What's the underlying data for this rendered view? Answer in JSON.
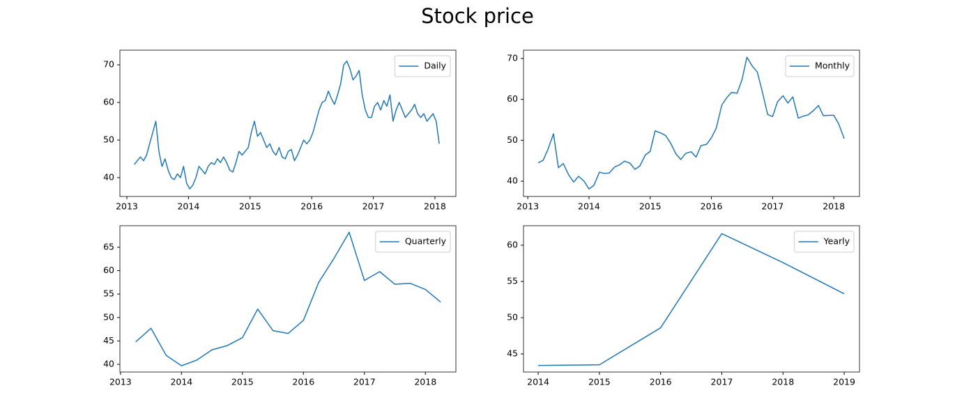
{
  "title": "Stock price",
  "chart_data": [
    {
      "type": "line",
      "legend": "upper right",
      "x": [
        2013.12,
        2013.17,
        2013.22,
        2013.27,
        2013.32,
        2013.37,
        2013.42,
        2013.47,
        2013.52,
        2013.57,
        2013.62,
        2013.67,
        2013.72,
        2013.77,
        2013.82,
        2013.87,
        2013.92,
        2013.97,
        2014.02,
        2014.07,
        2014.12,
        2014.17,
        2014.22,
        2014.27,
        2014.32,
        2014.37,
        2014.42,
        2014.47,
        2014.52,
        2014.57,
        2014.62,
        2014.67,
        2014.72,
        2014.77,
        2014.82,
        2014.87,
        2014.92,
        2014.97,
        2015.02,
        2015.07,
        2015.12,
        2015.17,
        2015.22,
        2015.27,
        2015.32,
        2015.37,
        2015.42,
        2015.47,
        2015.52,
        2015.57,
        2015.62,
        2015.67,
        2015.72,
        2015.77,
        2015.82,
        2015.87,
        2015.92,
        2015.97,
        2016.02,
        2016.07,
        2016.12,
        2016.17,
        2016.22,
        2016.27,
        2016.32,
        2016.37,
        2016.42,
        2016.47,
        2016.52,
        2016.57,
        2016.62,
        2016.67,
        2016.72,
        2016.77,
        2016.82,
        2016.87,
        2016.92,
        2016.97,
        2017.02,
        2017.07,
        2017.12,
        2017.17,
        2017.22,
        2017.27,
        2017.32,
        2017.37,
        2017.42,
        2017.47,
        2017.52,
        2017.57,
        2017.62,
        2017.67,
        2017.72,
        2017.77,
        2017.82,
        2017.87,
        2017.92,
        2017.97,
        2018.02,
        2018.07
      ],
      "series": [
        {
          "name": "Daily",
          "color": "#1f77b4",
          "values": [
            43.5,
            44.5,
            45.5,
            44.5,
            46,
            49,
            52,
            55,
            47,
            43,
            45,
            42,
            40,
            39.5,
            41,
            40,
            43,
            38.5,
            37,
            38,
            40,
            43,
            42,
            41,
            43,
            44,
            43.5,
            45,
            44,
            45.5,
            44,
            42,
            41.5,
            44,
            47,
            46,
            47,
            48,
            52,
            55,
            51,
            52,
            50,
            48,
            49,
            47,
            46,
            48,
            45.5,
            45,
            47,
            47.5,
            44.5,
            46,
            48,
            50,
            49,
            50,
            52,
            55,
            58,
            60,
            60.5,
            63,
            61,
            59.5,
            62,
            65,
            70,
            71,
            69,
            66,
            67,
            68.5,
            62,
            58,
            56,
            56,
            59,
            60,
            58,
            60.5,
            59,
            62,
            55,
            58,
            60,
            58,
            56,
            57,
            58,
            59.5,
            57,
            56,
            57,
            55,
            56,
            57,
            55,
            49
          ]
        }
      ],
      "xlim": [
        2012.887,
        2018.34
      ],
      "ylim": [
        35.0,
        73.9
      ],
      "xticks": [
        2013,
        2014,
        2015,
        2016,
        2017,
        2018
      ],
      "yticks": [
        40,
        50,
        60,
        70
      ]
    },
    {
      "type": "line",
      "legend": "upper right",
      "x": [
        2013.17,
        2013.25,
        2013.33,
        2013.42,
        2013.5,
        2013.58,
        2013.67,
        2013.75,
        2013.83,
        2013.92,
        2014.0,
        2014.08,
        2014.17,
        2014.25,
        2014.33,
        2014.42,
        2014.5,
        2014.58,
        2014.67,
        2014.75,
        2014.83,
        2014.92,
        2015.0,
        2015.08,
        2015.17,
        2015.25,
        2015.33,
        2015.42,
        2015.5,
        2015.58,
        2015.67,
        2015.75,
        2015.83,
        2015.92,
        2016.0,
        2016.08,
        2016.17,
        2016.25,
        2016.33,
        2016.42,
        2016.5,
        2016.58,
        2016.67,
        2016.75,
        2016.83,
        2016.92,
        2017.0,
        2017.08,
        2017.17,
        2017.25,
        2017.33,
        2017.42,
        2017.5,
        2017.58,
        2017.67,
        2017.75,
        2017.83,
        2017.92,
        2018.0,
        2018.08,
        2018.17
      ],
      "series": [
        {
          "name": "Monthly",
          "color": "#1f77b4",
          "values": [
            44.5,
            45.1,
            47.8,
            51.6,
            43.3,
            44.3,
            41.5,
            39.8,
            41.2,
            40.0,
            38.1,
            39.0,
            42.2,
            41.9,
            42.0,
            43.5,
            44.0,
            44.9,
            44.4,
            42.9,
            43.7,
            46.4,
            47.3,
            52.3,
            51.8,
            51.2,
            49.4,
            46.7,
            45.3,
            46.8,
            47.2,
            45.9,
            48.7,
            49.0,
            50.6,
            53.0,
            58.6,
            60.4,
            61.7,
            61.5,
            64.8,
            70.3,
            68.1,
            66.7,
            62.0,
            56.3,
            55.8,
            59.4,
            60.9,
            59.1,
            60.6,
            55.4,
            55.9,
            56.2,
            57.3,
            58.5,
            56.0,
            56.1,
            56.1,
            54.0,
            50.4
          ]
        }
      ],
      "xlim": [
        2012.93,
        2018.42
      ],
      "ylim": [
        36.27,
        72.03
      ],
      "xticks": [
        2013,
        2014,
        2015,
        2016,
        2017,
        2018
      ],
      "yticks": [
        40,
        50,
        60,
        70
      ]
    },
    {
      "type": "line",
      "legend": "upper right",
      "x": [
        2013.25,
        2013.5,
        2013.75,
        2014.0,
        2014.25,
        2014.5,
        2014.75,
        2015.0,
        2015.25,
        2015.5,
        2015.75,
        2016.0,
        2016.25,
        2016.5,
        2016.75,
        2017.0,
        2017.25,
        2017.5,
        2017.75,
        2018.0,
        2018.25
      ],
      "series": [
        {
          "name": "Quarterly",
          "color": "#1f77b4",
          "values": [
            44.8,
            47.7,
            41.9,
            39.7,
            40.9,
            43.1,
            44.0,
            45.7,
            51.8,
            47.2,
            46.6,
            49.4,
            57.5,
            62.6,
            68.2,
            57.9,
            59.8,
            57.1,
            57.3,
            56.0,
            53.3
          ]
        }
      ],
      "xlim": [
        2012.99,
        2018.5
      ],
      "ylim": [
        38.36,
        69.6
      ],
      "xticks": [
        2013,
        2014,
        2015,
        2016,
        2017,
        2018
      ],
      "yticks": [
        40,
        45,
        50,
        55,
        60,
        65
      ]
    },
    {
      "type": "line",
      "legend": "upper right",
      "x": [
        2014,
        2015,
        2016,
        2017,
        2018,
        2019
      ],
      "series": [
        {
          "name": "Yearly",
          "color": "#1f77b4",
          "values": [
            43.4,
            43.5,
            48.6,
            61.6,
            57.6,
            53.3
          ]
        }
      ],
      "xlim": [
        2013.76,
        2019.25
      ],
      "ylim": [
        42.5,
        62.69
      ],
      "xticks": [
        2014,
        2015,
        2016,
        2017,
        2018,
        2019
      ],
      "yticks": [
        45,
        50,
        55,
        60
      ]
    }
  ]
}
